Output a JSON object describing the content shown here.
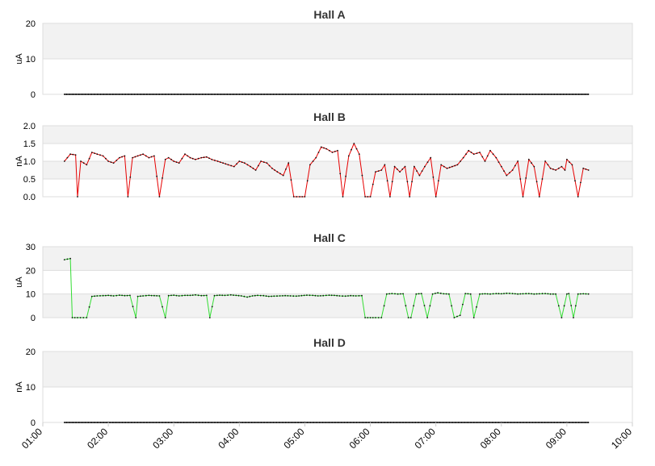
{
  "chart_data": [
    {
      "type": "line",
      "title": "Hall A",
      "ylabel": "uA",
      "ylim": [
        0,
        20
      ],
      "yticks": [
        "0",
        "10",
        "20"
      ],
      "color": "#e60000",
      "constant_zero": true,
      "x": [],
      "y": []
    },
    {
      "type": "line",
      "title": "Hall B",
      "ylabel": "nA",
      "ylim": [
        0,
        2.0
      ],
      "yticks": [
        "0.0",
        "0.5",
        "1.0",
        "1.5",
        "2.0"
      ],
      "color": "#e60000",
      "x": [
        1.33,
        1.42,
        1.5,
        1.53,
        1.58,
        1.67,
        1.75,
        1.83,
        1.92,
        2.0,
        2.08,
        2.17,
        2.25,
        2.3,
        2.37,
        2.45,
        2.53,
        2.62,
        2.7,
        2.78,
        2.87,
        2.92,
        3.0,
        3.08,
        3.17,
        3.25,
        3.33,
        3.42,
        3.5,
        3.58,
        3.67,
        3.75,
        3.83,
        3.92,
        4.0,
        4.08,
        4.17,
        4.25,
        4.33,
        4.42,
        4.5,
        4.58,
        4.67,
        4.75,
        4.83,
        4.92,
        5.0,
        5.08,
        5.17,
        5.25,
        5.33,
        5.42,
        5.5,
        5.58,
        5.67,
        5.75,
        5.83,
        5.92,
        6.0,
        6.08,
        6.17,
        6.22,
        6.3,
        6.37,
        6.45,
        6.53,
        6.6,
        6.67,
        6.75,
        6.83,
        6.92,
        7.0,
        7.08,
        7.17,
        7.25,
        7.33,
        7.42,
        7.5,
        7.58,
        7.67,
        7.75,
        7.83,
        7.92,
        8.0,
        8.08,
        8.17,
        8.25,
        8.33,
        8.42,
        8.5,
        8.58,
        8.67,
        8.75,
        8.83,
        8.92,
        8.97,
        9.0,
        9.08,
        9.17,
        9.25,
        9.33
      ],
      "y": [
        1.0,
        1.2,
        1.18,
        0.0,
        1.0,
        0.9,
        1.25,
        1.2,
        1.15,
        1.0,
        0.95,
        1.1,
        1.15,
        0.0,
        1.1,
        1.15,
        1.2,
        1.1,
        1.15,
        0.0,
        1.05,
        1.1,
        1.0,
        0.95,
        1.2,
        1.1,
        1.05,
        1.1,
        1.12,
        1.05,
        1.0,
        0.95,
        0.9,
        0.85,
        1.0,
        0.95,
        0.85,
        0.75,
        1.0,
        0.95,
        0.8,
        0.7,
        0.6,
        0.95,
        0.0,
        0.0,
        0.0,
        0.9,
        1.1,
        1.4,
        1.35,
        1.25,
        1.3,
        0.0,
        1.15,
        1.5,
        1.2,
        0.0,
        0.0,
        0.7,
        0.75,
        0.9,
        0.0,
        0.85,
        0.7,
        0.85,
        0.0,
        0.85,
        0.6,
        0.85,
        1.1,
        0.0,
        0.9,
        0.8,
        0.85,
        0.9,
        1.1,
        1.3,
        1.2,
        1.25,
        1.0,
        1.3,
        1.1,
        0.85,
        0.6,
        0.75,
        1.0,
        0.0,
        1.05,
        0.85,
        0.0,
        1.0,
        0.8,
        0.75,
        0.85,
        0.75,
        1.05,
        0.9,
        0.0,
        0.8,
        0.75
      ]
    },
    {
      "type": "line",
      "title": "Hall C",
      "ylabel": "uA",
      "ylim": [
        0,
        30
      ],
      "yticks": [
        "0",
        "10",
        "20",
        "30"
      ],
      "color": "#33dd33",
      "x": [
        1.33,
        1.42,
        1.45,
        1.53,
        1.62,
        1.67,
        1.75,
        1.83,
        1.92,
        2.0,
        2.08,
        2.17,
        2.25,
        2.33,
        2.42,
        2.45,
        2.53,
        2.62,
        2.7,
        2.78,
        2.87,
        2.92,
        3.0,
        3.08,
        3.17,
        3.25,
        3.33,
        3.42,
        3.5,
        3.55,
        3.62,
        3.7,
        3.78,
        3.87,
        3.95,
        4.03,
        4.12,
        4.2,
        4.28,
        4.37,
        4.45,
        4.53,
        4.62,
        4.7,
        4.78,
        4.87,
        4.95,
        5.03,
        5.12,
        5.2,
        5.28,
        5.37,
        5.45,
        5.53,
        5.62,
        5.7,
        5.78,
        5.87,
        5.92,
        6.0,
        6.08,
        6.17,
        6.25,
        6.33,
        6.42,
        6.5,
        6.58,
        6.62,
        6.7,
        6.78,
        6.87,
        6.95,
        7.03,
        7.12,
        7.2,
        7.28,
        7.37,
        7.45,
        7.53,
        7.58,
        7.62,
        7.67,
        7.75,
        7.83,
        7.92,
        8.0,
        8.08,
        8.17,
        8.25,
        8.33,
        8.42,
        8.5,
        8.58,
        8.67,
        8.75,
        8.83,
        8.92,
        9.0,
        9.03,
        9.1,
        9.17,
        9.25,
        9.33
      ],
      "y": [
        24.5,
        25.0,
        0.0,
        0.0,
        0.0,
        0.0,
        9.0,
        9.2,
        9.3,
        9.4,
        9.2,
        9.5,
        9.3,
        9.4,
        0.0,
        9.0,
        9.2,
        9.4,
        9.3,
        9.2,
        0.0,
        9.3,
        9.5,
        9.2,
        9.4,
        9.4,
        9.6,
        9.3,
        9.4,
        0.0,
        9.3,
        9.5,
        9.4,
        9.6,
        9.4,
        9.2,
        8.7,
        9.2,
        9.4,
        9.3,
        9.0,
        9.1,
        9.2,
        9.3,
        9.2,
        9.1,
        9.3,
        9.5,
        9.4,
        9.2,
        9.3,
        9.5,
        9.4,
        9.2,
        9.1,
        9.3,
        9.2,
        9.3,
        0.0,
        0.0,
        0.0,
        0.0,
        10.0,
        10.2,
        10.0,
        10.1,
        0.0,
        0.0,
        10.0,
        10.2,
        0.0,
        10.0,
        10.5,
        10.1,
        10.0,
        0.0,
        1.0,
        10.2,
        10.0,
        0.0,
        4.5,
        10.0,
        10.1,
        10.0,
        10.2,
        10.1,
        10.3,
        10.2,
        10.0,
        10.1,
        10.2,
        10.0,
        10.1,
        10.2,
        10.0,
        10.0,
        0.0,
        10.0,
        10.2,
        0.0,
        10.0,
        10.1,
        10.0
      ]
    },
    {
      "type": "line",
      "title": "Hall D",
      "ylabel": "nA",
      "ylim": [
        0,
        20
      ],
      "yticks": [
        "0",
        "10",
        "20"
      ],
      "color": "#e60000",
      "constant_zero": true,
      "x": [],
      "y": []
    }
  ],
  "x_axis": {
    "range": [
      "01:00",
      "10:00"
    ],
    "ticks": [
      "01:00",
      "02:00",
      "03:00",
      "04:00",
      "05:00",
      "06:00",
      "07:00",
      "08:00",
      "09:00",
      "10:00"
    ]
  },
  "data_span": {
    "start_hour": 1.33,
    "end_hour": 9.33
  }
}
